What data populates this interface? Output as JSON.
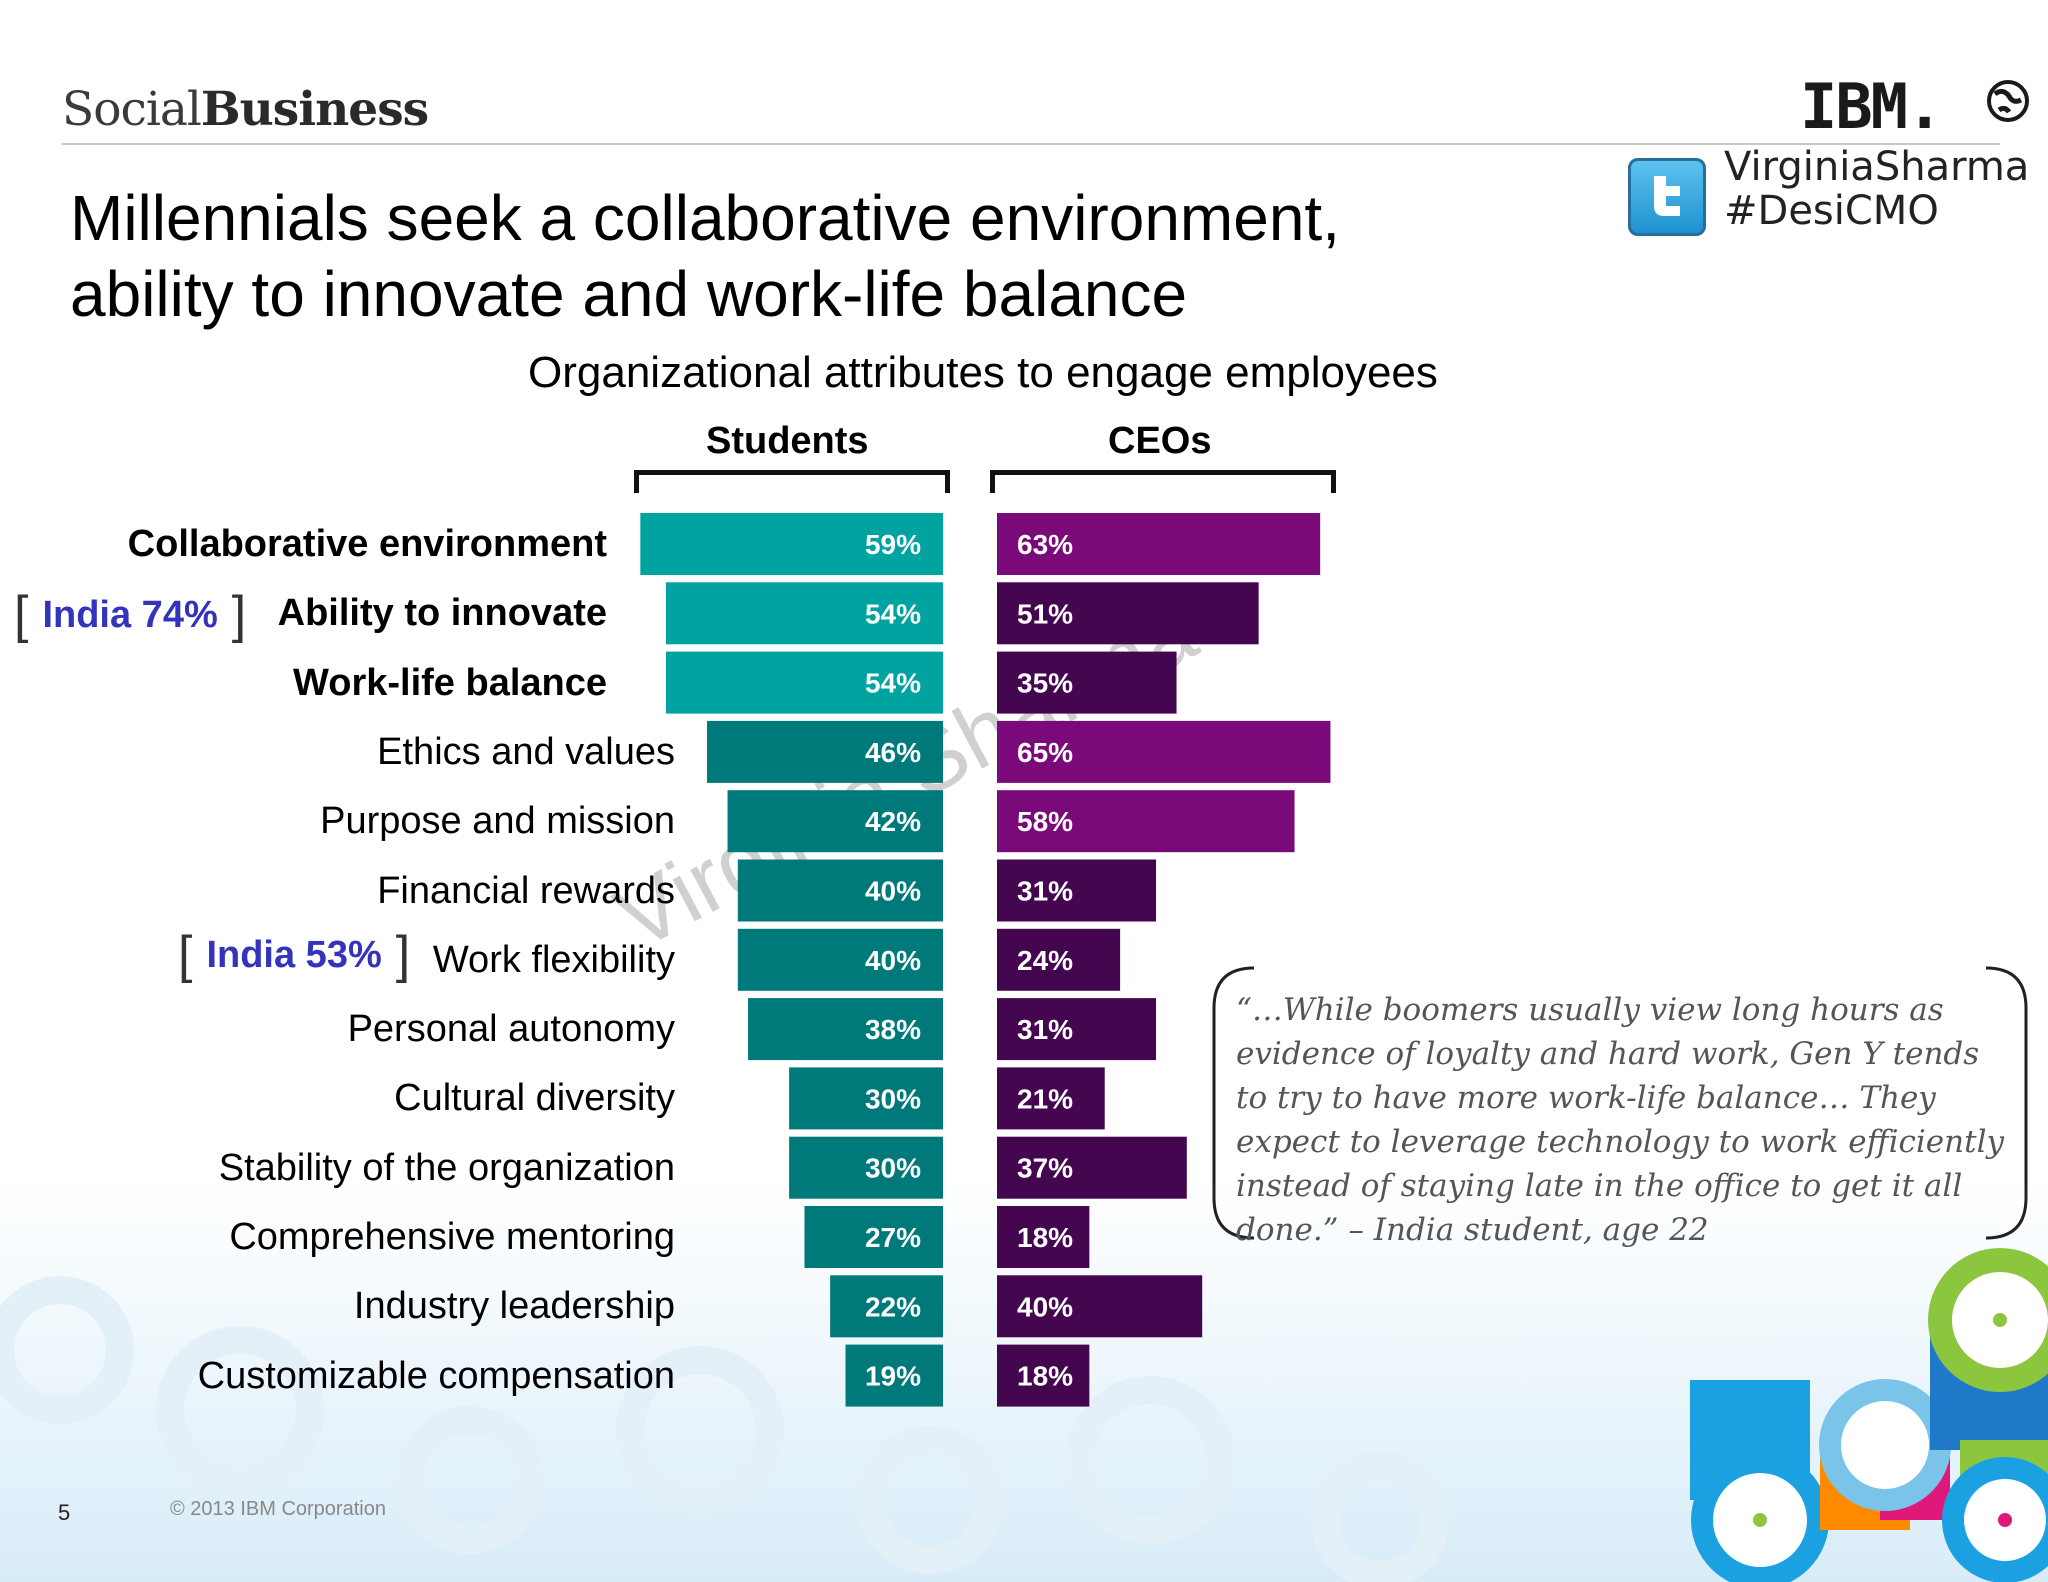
{
  "header": {
    "brand_light": "Social",
    "brand_bold": "Business",
    "logo_text": "IBM.",
    "twitter_handle_line1": "VirginiaSharma",
    "twitter_handle_line2": "#DesiCMO"
  },
  "slide": {
    "title_line1": "Millennials seek a collaborative environment,",
    "title_line2": "ability to innovate and work-life balance",
    "watermark": "Virginia Sharma"
  },
  "chart_data": {
    "type": "bar",
    "title": "Organizational attributes to engage employees",
    "categories": [
      "Collaborative environment",
      "Ability to innovate",
      "Work-life balance",
      "Ethics and values",
      "Purpose and mission",
      "Financial rewards",
      "Work flexibility",
      "Personal autonomy",
      "Cultural diversity",
      "Stability of the organization",
      "Comprehensive mentoring",
      "Industry leadership",
      "Customizable compensation"
    ],
    "bold_categories": [
      0,
      1,
      2
    ],
    "series": [
      {
        "name": "Students",
        "values": [
          59,
          54,
          54,
          46,
          42,
          40,
          40,
          38,
          30,
          30,
          27,
          22,
          19
        ],
        "value_labels": [
          "59%",
          "54%",
          "54%",
          "46%",
          "42%",
          "40%",
          "40%",
          "38%",
          "30%",
          "30%",
          "27%",
          "22%",
          "19%"
        ]
      },
      {
        "name": "CEOs",
        "values": [
          63,
          51,
          35,
          65,
          58,
          31,
          24,
          31,
          21,
          37,
          18,
          40,
          18
        ],
        "value_labels": [
          "63%",
          "51%",
          "35%",
          "65%",
          "58%",
          "31%",
          "24%",
          "31%",
          "21%",
          "37%",
          "18%",
          "40%",
          "18%"
        ]
      }
    ],
    "colors": {
      "students_top": "#00a3a0",
      "students_rest": "#00797a",
      "ceos_high": "#7a0a7a",
      "ceos_low": "#44074f"
    },
    "annotations": [
      {
        "category_index": 1,
        "text": "India 74%"
      },
      {
        "category_index": 6,
        "text": "India 53%"
      }
    ]
  },
  "quote": {
    "text": "“…While boomers usually view long hours as evidence of loyalty and hard work, Gen Y tends to try to have more work-life balance… They expect to leverage technology to work efficiently instead of staying late in the office to get it all done.” – India student, age 22"
  },
  "footer": {
    "page_number": "5",
    "copyright": "© 2013 IBM Corporation"
  }
}
